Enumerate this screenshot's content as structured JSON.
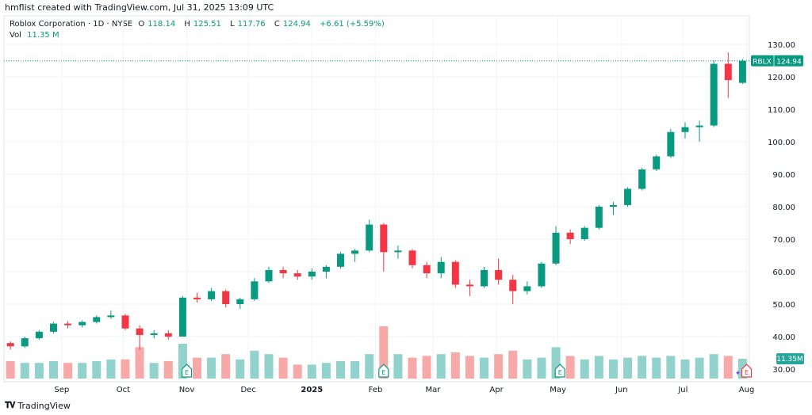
{
  "header": {
    "credit": "hmflist created with TradingView.com, Jul 31, 2025 13:09 UTC"
  },
  "legend": {
    "title": "Roblox Corporation · 1D · NYSE",
    "o_label": "O",
    "o": "118.14",
    "h_label": "H",
    "h": "125.51",
    "l_label": "L",
    "l": "117.76",
    "c_label": "C",
    "c": "124.94",
    "change": "+6.61 (+5.59%)",
    "vol_label": "Vol",
    "vol": "11.35 M"
  },
  "price_badge": {
    "symbol": "RBLX",
    "price": "124.94"
  },
  "volume_badge": "11.35M",
  "footer": {
    "brand": "TradingView",
    "logo": "17"
  },
  "colors": {
    "up": "#089981",
    "down": "#f23645",
    "vol_up": "#92d2cc",
    "vol_down": "#f7a9a7"
  },
  "chart_data": {
    "type": "candlestick",
    "interval": "weekly summary of daily chart",
    "ylim": [
      30,
      130
    ],
    "y_ticks": [
      "130.00",
      "120.00",
      "110.00",
      "100.00",
      "90.00",
      "80.00",
      "70.00",
      "60.00",
      "50.00",
      "40.00",
      "30.00"
    ],
    "x_ticks": [
      {
        "label": "Sep",
        "day": 27
      },
      {
        "label": "Oct",
        "day": 57
      },
      {
        "label": "Nov",
        "day": 88
      },
      {
        "label": "Dec",
        "day": 118
      },
      {
        "label": "2025",
        "day": 149
      },
      {
        "label": "Feb",
        "day": 180
      },
      {
        "label": "Mar",
        "day": 208
      },
      {
        "label": "Apr",
        "day": 239
      },
      {
        "label": "May",
        "day": 269
      },
      {
        "label": "Jun",
        "day": 300
      },
      {
        "label": "Jul",
        "day": 330
      },
      {
        "label": "Aug",
        "day": 361
      }
    ],
    "earnings_days": [
      88,
      184,
      270
    ],
    "upcoming_earnings_day": 361,
    "start_date": "2024-08-05",
    "candles": [
      [
        38,
        38.5,
        36,
        37,
        10
      ],
      [
        37,
        40,
        36.5,
        39.5,
        9
      ],
      [
        39.5,
        42,
        39,
        41.5,
        9
      ],
      [
        41.5,
        44.5,
        41,
        44,
        10
      ],
      [
        44,
        44.8,
        42.5,
        43.5,
        9
      ],
      [
        43.5,
        45,
        42.8,
        44.5,
        9
      ],
      [
        44.5,
        46.5,
        44,
        46,
        10
      ],
      [
        46,
        48,
        45.5,
        46.5,
        11
      ],
      [
        46.5,
        47,
        42,
        42.5,
        11
      ],
      [
        42.5,
        43.5,
        36,
        40.5,
        18
      ],
      [
        40.5,
        42,
        39.5,
        41,
        9
      ],
      [
        41,
        42,
        39,
        40,
        10
      ],
      [
        40,
        52.5,
        40,
        52,
        20
      ],
      [
        52,
        53.5,
        50.5,
        51.5,
        12
      ],
      [
        51.5,
        55,
        51,
        54,
        12
      ],
      [
        54,
        54.5,
        49,
        50,
        14
      ],
      [
        50,
        52,
        48.5,
        51.5,
        11
      ],
      [
        51.5,
        58,
        51,
        57,
        16
      ],
      [
        57,
        61.5,
        56.5,
        60.5,
        14
      ],
      [
        60.5,
        61.5,
        58,
        59.5,
        12
      ],
      [
        59.5,
        60.5,
        57.5,
        58.5,
        8
      ],
      [
        58.5,
        61,
        57.5,
        60,
        8
      ],
      [
        60,
        62,
        58,
        61.5,
        9
      ],
      [
        61.5,
        66,
        61,
        65.5,
        10
      ],
      [
        65.5,
        67,
        63,
        66.5,
        10
      ],
      [
        66.5,
        76,
        66,
        74.5,
        14
      ],
      [
        74.5,
        75,
        60,
        66,
        30
      ],
      [
        66,
        68,
        64,
        66.5,
        14
      ],
      [
        66.5,
        67,
        61,
        62,
        12
      ],
      [
        62,
        63,
        58,
        59.5,
        13
      ],
      [
        59.5,
        64.5,
        58,
        63,
        14
      ],
      [
        63,
        63.5,
        55,
        56,
        15
      ],
      [
        56,
        57.5,
        52.5,
        55.5,
        13
      ],
      [
        55.5,
        61.5,
        55,
        60.5,
        12
      ],
      [
        60.5,
        64,
        56,
        57.5,
        14
      ],
      [
        57.5,
        59,
        50,
        54,
        16
      ],
      [
        54,
        57,
        53,
        55.5,
        11
      ],
      [
        55.5,
        63,
        55,
        62.5,
        12
      ],
      [
        62.5,
        74,
        62,
        72,
        18
      ],
      [
        72,
        73,
        68.5,
        70,
        13
      ],
      [
        70,
        74,
        69.5,
        73.5,
        11
      ],
      [
        73.5,
        80.5,
        73,
        80,
        13
      ],
      [
        80,
        81.5,
        77.5,
        80.5,
        11
      ],
      [
        80.5,
        86,
        80,
        85.5,
        12
      ],
      [
        85.5,
        92,
        85,
        91.5,
        13
      ],
      [
        91.5,
        96,
        91,
        95.5,
        12
      ],
      [
        95.5,
        104,
        95,
        103,
        13
      ],
      [
        103,
        106,
        101,
        104.5,
        11
      ],
      [
        104.5,
        106.5,
        100,
        105,
        12
      ],
      [
        105,
        125,
        104.5,
        124,
        14
      ],
      [
        124,
        127.5,
        113.5,
        119,
        13
      ],
      [
        118.14,
        125.51,
        117.76,
        124.94,
        11.35
      ]
    ],
    "candle_fields": [
      "open",
      "high",
      "low",
      "close",
      "volume_M"
    ],
    "last_price": 124.94
  }
}
